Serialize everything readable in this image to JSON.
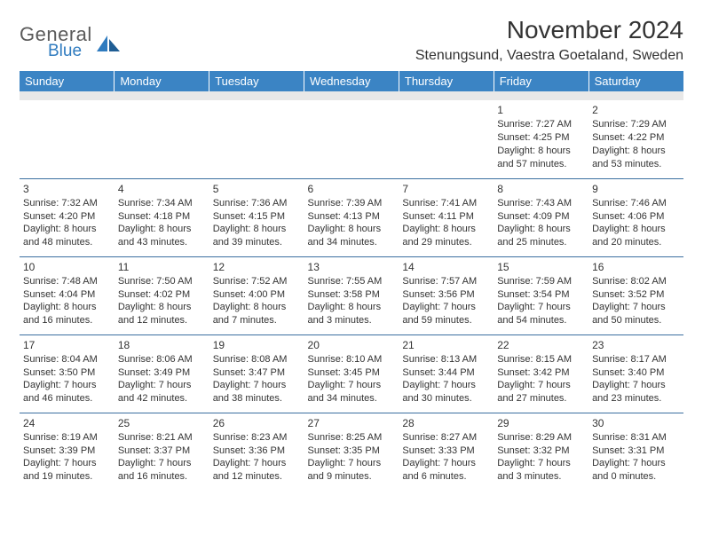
{
  "brand": {
    "line1": "General",
    "line2": "Blue",
    "text_color": "#5a5a5a",
    "accent_color": "#2f7bbf"
  },
  "header": {
    "title": "November 2024",
    "location": "Stenungsund, Vaestra Goetaland, Sweden",
    "title_fontsize": 28,
    "location_fontsize": 16,
    "text_color": "#333333"
  },
  "calendar": {
    "header_bg": "#3b84c4",
    "header_fg": "#ffffff",
    "cell_border_color": "#3b6fa0",
    "spacer_bg": "#e8e8e8",
    "body_text_color": "#333333",
    "daynames": [
      "Sunday",
      "Monday",
      "Tuesday",
      "Wednesday",
      "Thursday",
      "Friday",
      "Saturday"
    ],
    "weeks": [
      [
        null,
        null,
        null,
        null,
        null,
        {
          "day": "1",
          "sunrise": "Sunrise: 7:27 AM",
          "sunset": "Sunset: 4:25 PM",
          "daylight": "Daylight: 8 hours and 57 minutes."
        },
        {
          "day": "2",
          "sunrise": "Sunrise: 7:29 AM",
          "sunset": "Sunset: 4:22 PM",
          "daylight": "Daylight: 8 hours and 53 minutes."
        }
      ],
      [
        {
          "day": "3",
          "sunrise": "Sunrise: 7:32 AM",
          "sunset": "Sunset: 4:20 PM",
          "daylight": "Daylight: 8 hours and 48 minutes."
        },
        {
          "day": "4",
          "sunrise": "Sunrise: 7:34 AM",
          "sunset": "Sunset: 4:18 PM",
          "daylight": "Daylight: 8 hours and 43 minutes."
        },
        {
          "day": "5",
          "sunrise": "Sunrise: 7:36 AM",
          "sunset": "Sunset: 4:15 PM",
          "daylight": "Daylight: 8 hours and 39 minutes."
        },
        {
          "day": "6",
          "sunrise": "Sunrise: 7:39 AM",
          "sunset": "Sunset: 4:13 PM",
          "daylight": "Daylight: 8 hours and 34 minutes."
        },
        {
          "day": "7",
          "sunrise": "Sunrise: 7:41 AM",
          "sunset": "Sunset: 4:11 PM",
          "daylight": "Daylight: 8 hours and 29 minutes."
        },
        {
          "day": "8",
          "sunrise": "Sunrise: 7:43 AM",
          "sunset": "Sunset: 4:09 PM",
          "daylight": "Daylight: 8 hours and 25 minutes."
        },
        {
          "day": "9",
          "sunrise": "Sunrise: 7:46 AM",
          "sunset": "Sunset: 4:06 PM",
          "daylight": "Daylight: 8 hours and 20 minutes."
        }
      ],
      [
        {
          "day": "10",
          "sunrise": "Sunrise: 7:48 AM",
          "sunset": "Sunset: 4:04 PM",
          "daylight": "Daylight: 8 hours and 16 minutes."
        },
        {
          "day": "11",
          "sunrise": "Sunrise: 7:50 AM",
          "sunset": "Sunset: 4:02 PM",
          "daylight": "Daylight: 8 hours and 12 minutes."
        },
        {
          "day": "12",
          "sunrise": "Sunrise: 7:52 AM",
          "sunset": "Sunset: 4:00 PM",
          "daylight": "Daylight: 8 hours and 7 minutes."
        },
        {
          "day": "13",
          "sunrise": "Sunrise: 7:55 AM",
          "sunset": "Sunset: 3:58 PM",
          "daylight": "Daylight: 8 hours and 3 minutes."
        },
        {
          "day": "14",
          "sunrise": "Sunrise: 7:57 AM",
          "sunset": "Sunset: 3:56 PM",
          "daylight": "Daylight: 7 hours and 59 minutes."
        },
        {
          "day": "15",
          "sunrise": "Sunrise: 7:59 AM",
          "sunset": "Sunset: 3:54 PM",
          "daylight": "Daylight: 7 hours and 54 minutes."
        },
        {
          "day": "16",
          "sunrise": "Sunrise: 8:02 AM",
          "sunset": "Sunset: 3:52 PM",
          "daylight": "Daylight: 7 hours and 50 minutes."
        }
      ],
      [
        {
          "day": "17",
          "sunrise": "Sunrise: 8:04 AM",
          "sunset": "Sunset: 3:50 PM",
          "daylight": "Daylight: 7 hours and 46 minutes."
        },
        {
          "day": "18",
          "sunrise": "Sunrise: 8:06 AM",
          "sunset": "Sunset: 3:49 PM",
          "daylight": "Daylight: 7 hours and 42 minutes."
        },
        {
          "day": "19",
          "sunrise": "Sunrise: 8:08 AM",
          "sunset": "Sunset: 3:47 PM",
          "daylight": "Daylight: 7 hours and 38 minutes."
        },
        {
          "day": "20",
          "sunrise": "Sunrise: 8:10 AM",
          "sunset": "Sunset: 3:45 PM",
          "daylight": "Daylight: 7 hours and 34 minutes."
        },
        {
          "day": "21",
          "sunrise": "Sunrise: 8:13 AM",
          "sunset": "Sunset: 3:44 PM",
          "daylight": "Daylight: 7 hours and 30 minutes."
        },
        {
          "day": "22",
          "sunrise": "Sunrise: 8:15 AM",
          "sunset": "Sunset: 3:42 PM",
          "daylight": "Daylight: 7 hours and 27 minutes."
        },
        {
          "day": "23",
          "sunrise": "Sunrise: 8:17 AM",
          "sunset": "Sunset: 3:40 PM",
          "daylight": "Daylight: 7 hours and 23 minutes."
        }
      ],
      [
        {
          "day": "24",
          "sunrise": "Sunrise: 8:19 AM",
          "sunset": "Sunset: 3:39 PM",
          "daylight": "Daylight: 7 hours and 19 minutes."
        },
        {
          "day": "25",
          "sunrise": "Sunrise: 8:21 AM",
          "sunset": "Sunset: 3:37 PM",
          "daylight": "Daylight: 7 hours and 16 minutes."
        },
        {
          "day": "26",
          "sunrise": "Sunrise: 8:23 AM",
          "sunset": "Sunset: 3:36 PM",
          "daylight": "Daylight: 7 hours and 12 minutes."
        },
        {
          "day": "27",
          "sunrise": "Sunrise: 8:25 AM",
          "sunset": "Sunset: 3:35 PM",
          "daylight": "Daylight: 7 hours and 9 minutes."
        },
        {
          "day": "28",
          "sunrise": "Sunrise: 8:27 AM",
          "sunset": "Sunset: 3:33 PM",
          "daylight": "Daylight: 7 hours and 6 minutes."
        },
        {
          "day": "29",
          "sunrise": "Sunrise: 8:29 AM",
          "sunset": "Sunset: 3:32 PM",
          "daylight": "Daylight: 7 hours and 3 minutes."
        },
        {
          "day": "30",
          "sunrise": "Sunrise: 8:31 AM",
          "sunset": "Sunset: 3:31 PM",
          "daylight": "Daylight: 7 hours and 0 minutes."
        }
      ]
    ]
  }
}
